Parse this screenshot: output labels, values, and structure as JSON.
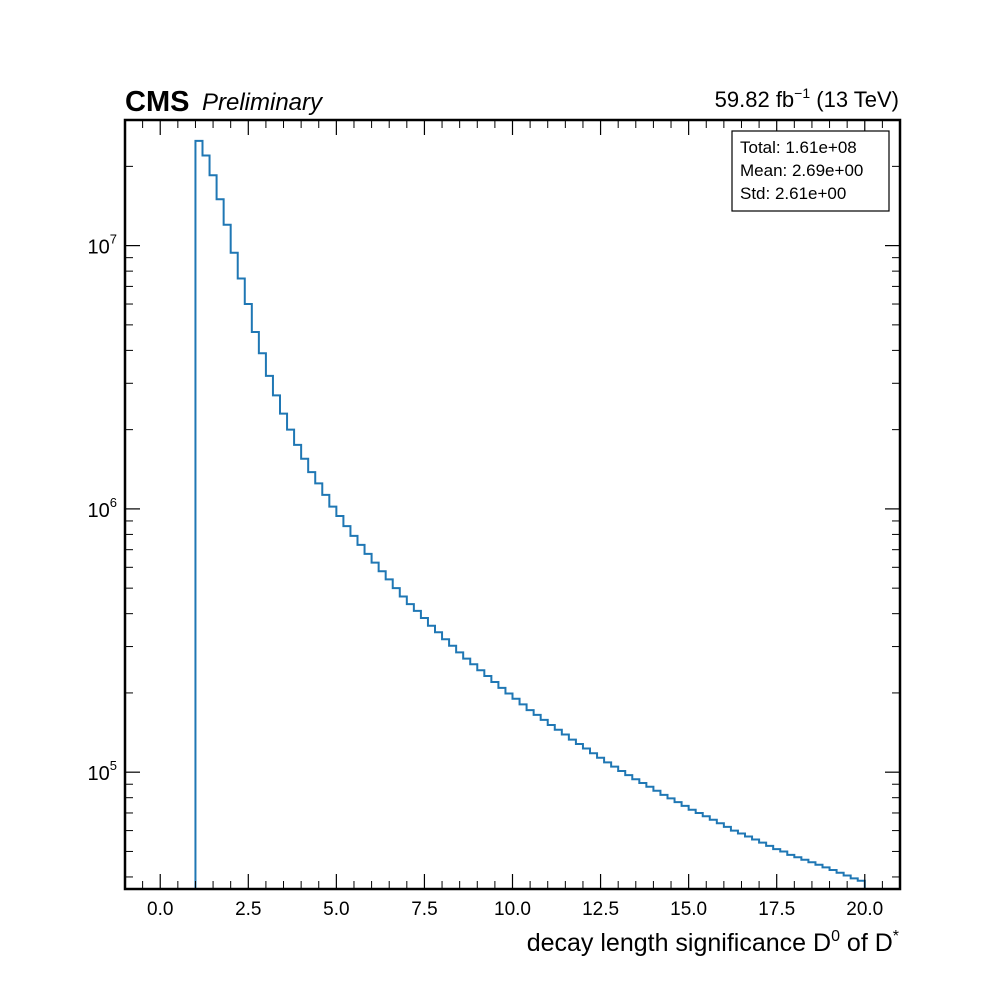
{
  "header": {
    "experiment": "CMS",
    "status": "Preliminary",
    "lumi_value": "59.82 fb",
    "lumi_exp": "−1",
    "energy": " (13 TeV)"
  },
  "stats_box": {
    "total": "Total: 1.61e+08",
    "mean": "Mean: 2.69e+00",
    "std": "Std: 2.61e+00"
  },
  "colors": {
    "line": "#1f77b4",
    "axes": "#000000",
    "background": "#ffffff"
  },
  "chart_data": {
    "type": "histogram",
    "x_scale": "linear",
    "y_scale": "log",
    "xlim": [
      -1.0,
      21.0
    ],
    "ylim": [
      36000,
      30000000
    ],
    "grid": false,
    "xlabel": {
      "text": "decay length significance D",
      "sup1": "0",
      "mid": " of D",
      "sup2": "*"
    },
    "ylabel": "",
    "x_ticks": [
      {
        "value": 0.0,
        "label": "0.0"
      },
      {
        "value": 2.5,
        "label": "2.5"
      },
      {
        "value": 5.0,
        "label": "5.0"
      },
      {
        "value": 7.5,
        "label": "7.5"
      },
      {
        "value": 10.0,
        "label": "10.0"
      },
      {
        "value": 12.5,
        "label": "12.5"
      },
      {
        "value": 15.0,
        "label": "15.0"
      },
      {
        "value": 17.5,
        "label": "17.5"
      },
      {
        "value": 20.0,
        "label": "20.0"
      }
    ],
    "y_ticks": [
      {
        "value": 100000,
        "base": "10",
        "exp": "5"
      },
      {
        "value": 1000000,
        "base": "10",
        "exp": "6"
      },
      {
        "value": 10000000,
        "base": "10",
        "exp": "7"
      }
    ],
    "bin_edges_range": [
      1.0,
      20.0
    ],
    "bin_width": 0.2,
    "counts": [
      25000000,
      22000000,
      18500000,
      15000000,
      12000000,
      9400000,
      7500000,
      6000000,
      4700000,
      3900000,
      3200000,
      2700000,
      2300000,
      2000000,
      1750000,
      1550000,
      1380000,
      1250000,
      1130000,
      1020000,
      940000,
      860000,
      790000,
      730000,
      675000,
      625000,
      580000,
      540000,
      500000,
      465000,
      435000,
      410000,
      385000,
      360000,
      340000,
      320000,
      302000,
      285000,
      270000,
      257000,
      244000,
      232000,
      220000,
      209000,
      199000,
      190000,
      181000,
      172000,
      165000,
      158000,
      151000,
      145000,
      139000,
      133000,
      128000,
      123000,
      118000,
      113500,
      109000,
      105000,
      101000,
      97500,
      94000,
      91000,
      88000,
      85000,
      82000,
      79500,
      77000,
      74500,
      72000,
      70000,
      68000,
      66000,
      64000,
      62000,
      60000,
      58500,
      57000,
      55500,
      54000,
      52500,
      51000,
      50000,
      48500,
      47500,
      46500,
      45500,
      44500,
      43500,
      42500,
      41500,
      40500,
      39500,
      38700
    ]
  }
}
